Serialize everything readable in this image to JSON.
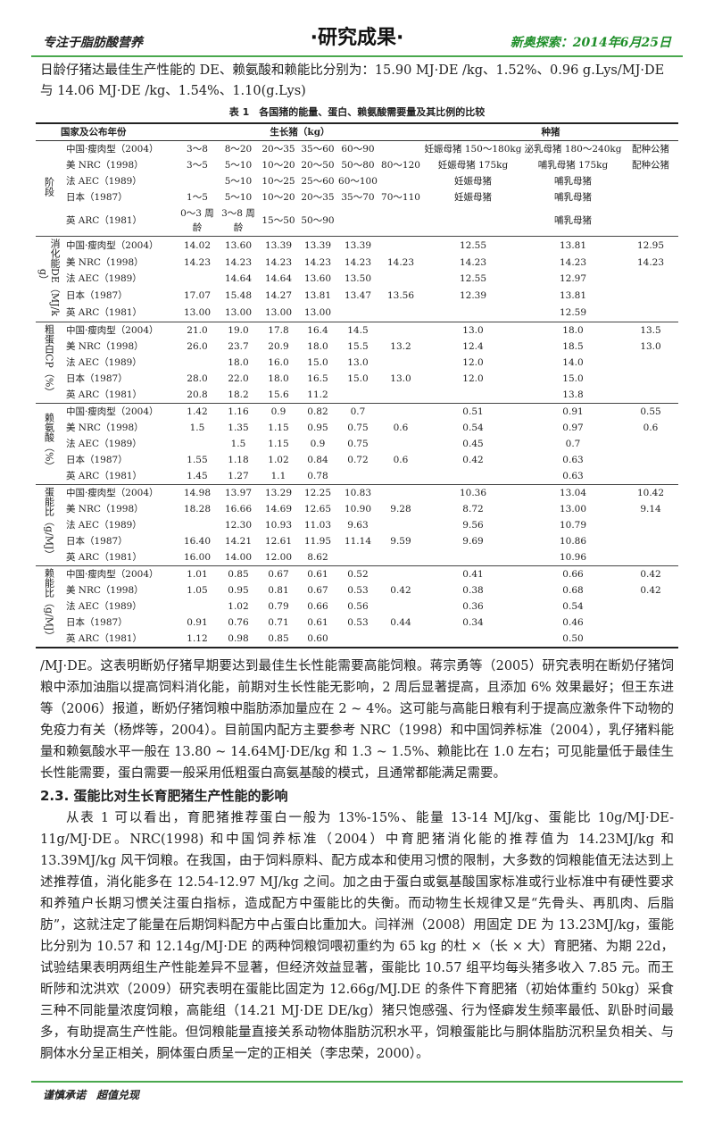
{
  "header": {
    "left": "专注于脂肪酸营养",
    "center": "·研究成果·",
    "right": "新奥探索：2014年6月25日",
    "accent_color": "#4aa84e"
  },
  "intro": "日龄仔猪达最佳生产性能的 DE、赖氨酸和赖能比分别为：15.90 MJ·DE /kg、1.52%、0.96 g.Lys/MJ·DE 与 14.06 MJ·DE /kg、1.54%、1.10(g.Lys)",
  "table": {
    "caption": "表 1　各国猪的能量、蛋白、赖氨酸需要量及其比例的比较",
    "head": {
      "country": "国家及公布年份",
      "growing": "生长猪（kg）",
      "breeding": "种猪"
    },
    "groups": [
      {
        "label": "阶段",
        "rows": [
          {
            "country": "中国·瘦肉型（2004）",
            "values": [
              "3～8",
              "8～20",
              "20～35",
              "35～60",
              "60～90",
              "",
              "妊娠母猪 150～180kg",
              "泌乳母猪 180～240kg",
              "配种公猪"
            ]
          },
          {
            "country": "美 NRC（1998）",
            "values": [
              "3～5",
              "5～10",
              "10～20",
              "20～50",
              "50～80",
              "80～120",
              "妊娠母猪 175kg",
              "哺乳母猪 175kg",
              "配种公猪"
            ]
          },
          {
            "country": "法 AEC（1989）",
            "values": [
              "",
              "5～10",
              "10～25",
              "25～60",
              "60～100",
              "",
              "妊娠母猪",
              "哺乳母猪",
              ""
            ]
          },
          {
            "country": "日本（1987）",
            "values": [
              "1～5",
              "5～10",
              "10～20",
              "20～35",
              "35～70",
              "70～110",
              "妊娠母猪",
              "哺乳母猪",
              ""
            ]
          },
          {
            "country": "英 ARC（1981）",
            "values": [
              "0～3 周龄",
              "3～8 周龄",
              "15～50",
              "50～90",
              "",
              "",
              "",
              "哺乳母猪",
              ""
            ]
          }
        ]
      },
      {
        "label": "消化能DE（MJ/kg）",
        "rows": [
          {
            "country": "中国·瘦肉型（2004）",
            "values": [
              "14.02",
              "13.60",
              "13.39",
              "13.39",
              "13.39",
              "",
              "12.55",
              "13.81",
              "12.95"
            ]
          },
          {
            "country": "美 NRC（1998）",
            "values": [
              "14.23",
              "14.23",
              "14.23",
              "14.23",
              "14.23",
              "14.23",
              "14.23",
              "14.23",
              "14.23"
            ]
          },
          {
            "country": "法 AEC（1989）",
            "values": [
              "",
              "14.64",
              "14.64",
              "13.60",
              "13.50",
              "",
              "12.55",
              "12.97",
              ""
            ]
          },
          {
            "country": "日本（1987）",
            "values": [
              "17.07",
              "15.48",
              "14.27",
              "13.81",
              "13.47",
              "13.56",
              "12.39",
              "13.81",
              ""
            ]
          },
          {
            "country": "英 ARC（1981）",
            "values": [
              "13.00",
              "13.00",
              "13.00",
              "13.00",
              "",
              "",
              "",
              "12.59",
              ""
            ]
          }
        ]
      },
      {
        "label": "粗蛋白CP（%）",
        "rows": [
          {
            "country": "中国·瘦肉型（2004）",
            "values": [
              "21.0",
              "19.0",
              "17.8",
              "16.4",
              "14.5",
              "",
              "13.0",
              "18.0",
              "13.5"
            ]
          },
          {
            "country": "美 NRC（1998）",
            "values": [
              "26.0",
              "23.7",
              "20.9",
              "18.0",
              "15.5",
              "13.2",
              "12.4",
              "18.5",
              "13.0"
            ]
          },
          {
            "country": "法 AEC（1989）",
            "values": [
              "",
              "18.0",
              "16.0",
              "15.0",
              "13.0",
              "",
              "12.0",
              "14.0",
              ""
            ]
          },
          {
            "country": "日本（1987）",
            "values": [
              "28.0",
              "22.0",
              "18.0",
              "16.5",
              "15.0",
              "13.0",
              "12.0",
              "15.0",
              ""
            ]
          },
          {
            "country": "英 ARC（1981）",
            "values": [
              "20.8",
              "18.2",
              "15.6",
              "11.2",
              "",
              "",
              "",
              "13.8",
              ""
            ]
          }
        ]
      },
      {
        "label": "赖氨酸（%）",
        "rows": [
          {
            "country": "中国·瘦肉型（2004）",
            "values": [
              "1.42",
              "1.16",
              "0.9",
              "0.82",
              "0.7",
              "",
              "0.51",
              "0.91",
              "0.55"
            ]
          },
          {
            "country": "美 NRC（1998）",
            "values": [
              "1.5",
              "1.35",
              "1.15",
              "0.95",
              "0.75",
              "0.6",
              "0.54",
              "0.97",
              "0.6"
            ]
          },
          {
            "country": "法 AEC（1989）",
            "values": [
              "",
              "1.5",
              "1.15",
              "0.9",
              "0.75",
              "",
              "0.45",
              "0.7",
              ""
            ]
          },
          {
            "country": "日本（1987）",
            "values": [
              "1.55",
              "1.18",
              "1.02",
              "0.84",
              "0.72",
              "0.6",
              "0.42",
              "0.63",
              ""
            ]
          },
          {
            "country": "英 ARC（1981）",
            "values": [
              "1.45",
              "1.27",
              "1.1",
              "0.78",
              "",
              "",
              "",
              "0.63",
              ""
            ]
          }
        ]
      },
      {
        "label": "蛋能比（g/MJ）",
        "rows": [
          {
            "country": "中国·瘦肉型（2004）",
            "values": [
              "14.98",
              "13.97",
              "13.29",
              "12.25",
              "10.83",
              "",
              "10.36",
              "13.04",
              "10.42"
            ]
          },
          {
            "country": "美 NRC（1998）",
            "values": [
              "18.28",
              "16.66",
              "14.69",
              "12.65",
              "10.90",
              "9.28",
              "8.72",
              "13.00",
              "9.14"
            ]
          },
          {
            "country": "法 AEC（1989）",
            "values": [
              "",
              "12.30",
              "10.93",
              "11.03",
              "9.63",
              "",
              "9.56",
              "10.79",
              ""
            ]
          },
          {
            "country": "日本（1987）",
            "values": [
              "16.40",
              "14.21",
              "12.61",
              "11.95",
              "11.14",
              "9.59",
              "9.69",
              "10.86",
              ""
            ]
          },
          {
            "country": "英 ARC（1981）",
            "values": [
              "16.00",
              "14.00",
              "12.00",
              "8.62",
              "",
              "",
              "",
              "10.96",
              ""
            ]
          }
        ]
      },
      {
        "label": "赖能比（g/MJ）",
        "rows": [
          {
            "country": "中国·瘦肉型（2004）",
            "values": [
              "1.01",
              "0.85",
              "0.67",
              "0.61",
              "0.52",
              "",
              "0.41",
              "0.66",
              "0.42"
            ]
          },
          {
            "country": "美 NRC（1998）",
            "values": [
              "1.05",
              "0.95",
              "0.81",
              "0.67",
              "0.53",
              "0.42",
              "0.38",
              "0.68",
              "0.42"
            ]
          },
          {
            "country": "法 AEC（1989）",
            "values": [
              "",
              "1.02",
              "0.79",
              "0.66",
              "0.56",
              "",
              "0.36",
              "0.54",
              ""
            ]
          },
          {
            "country": "日本（1987）",
            "values": [
              "0.91",
              "0.76",
              "0.71",
              "0.61",
              "0.53",
              "0.44",
              "0.34",
              "0.46",
              ""
            ]
          },
          {
            "country": "英 ARC（1981）",
            "values": [
              "1.12",
              "0.98",
              "0.85",
              "0.60",
              "",
              "",
              "",
              "0.50",
              ""
            ]
          }
        ]
      }
    ]
  },
  "body": {
    "para1": "/MJ·DE。这表明断奶仔猪早期要达到最佳生长性能需要高能饲粮。蒋宗勇等（2005）研究表明在断奶仔猪饲粮中添加油脂以提高饲料消化能，前期对生长性能无影响，2 周后显著提高，且添加 6% 效果最好；但王东进等（2006）报道，断奶仔猪饲粮中脂肪添加量应在 2 ~ 4%。这可能与高能日粮有利于提高应激条件下动物的免疫力有关（杨烨等，2004）。目前国内配方主要参考 NRC（1998）和中国饲养标准（2004），乳仔猪料能量和赖氨酸水平一般在 13.80 ~ 14.64MJ·DE/kg 和 1.3 ~ 1.5%、赖能比在 1.0 左右；可见能量低于最佳生长性能需要，蛋白需要一般采用低粗蛋白高氨基酸的模式，且通常都能满足需要。",
    "section_heading": "2.3.  蛋能比对生长育肥猪生产性能的影响",
    "para2": "从表 1 可以看出，育肥猪推荐蛋白一般为 13%-15%、能量 13-14 MJ/kg、蛋能比 10g/MJ·DE-11g/MJ·DE。NRC(1998) 和中国饲养标准（2004）中育肥猪消化能的推荐值为 14.23MJ/kg 和 13.39MJ/kg 风干饲粮。在我国，由于饲料原料、配方成本和使用习惯的限制，大多数的饲粮能值无法达到上述推荐值，消化能多在 12.54-12.97 MJ/kg 之间。加之由于蛋白或氨基酸国家标准或行业标准中有硬性要求和养殖户长期习惯关注蛋白指标，造成配方中蛋能比的失衡。而动物生长规律又是“先骨头、再肌肉、后脂肪”，这就注定了能量在后期饲料配方中占蛋白比重加大。闫祥洲（2008）用固定 DE 为 13.23MJ/kg，蛋能比分别为 10.57 和 12.14g/MJ·DE 的两种饲粮饲喂初重约为 65 kg 的杜 ×（长 × 大）育肥猪、为期 22d，试验结果表明两组生产性能差异不显著，但经济效益显著，蛋能比 10.57 组平均每头猪多收入 7.85 元。而王昕陟和沈洪欢（2009）研究表明在蛋能比固定为 12.66g/MJ.DE 的条件下育肥猪（初始体重约 50kg）采食三种不同能量浓度饲粮，高能组（14.21 MJ·DE DE/kg）猪只饱感强、行为怪癖发生频率最低、趴卧时间最多，有助提高生产性能。但饲粮能量直接关系动物体脂肪沉积水平，饲粮蛋能比与胴体脂肪沉积呈负相关、与胴体水分呈正相关，胴体蛋白质呈一定的正相关（李忠荣，2000）。"
  },
  "footer": {
    "slogan": "谨慎承诺　超值兑现"
  }
}
